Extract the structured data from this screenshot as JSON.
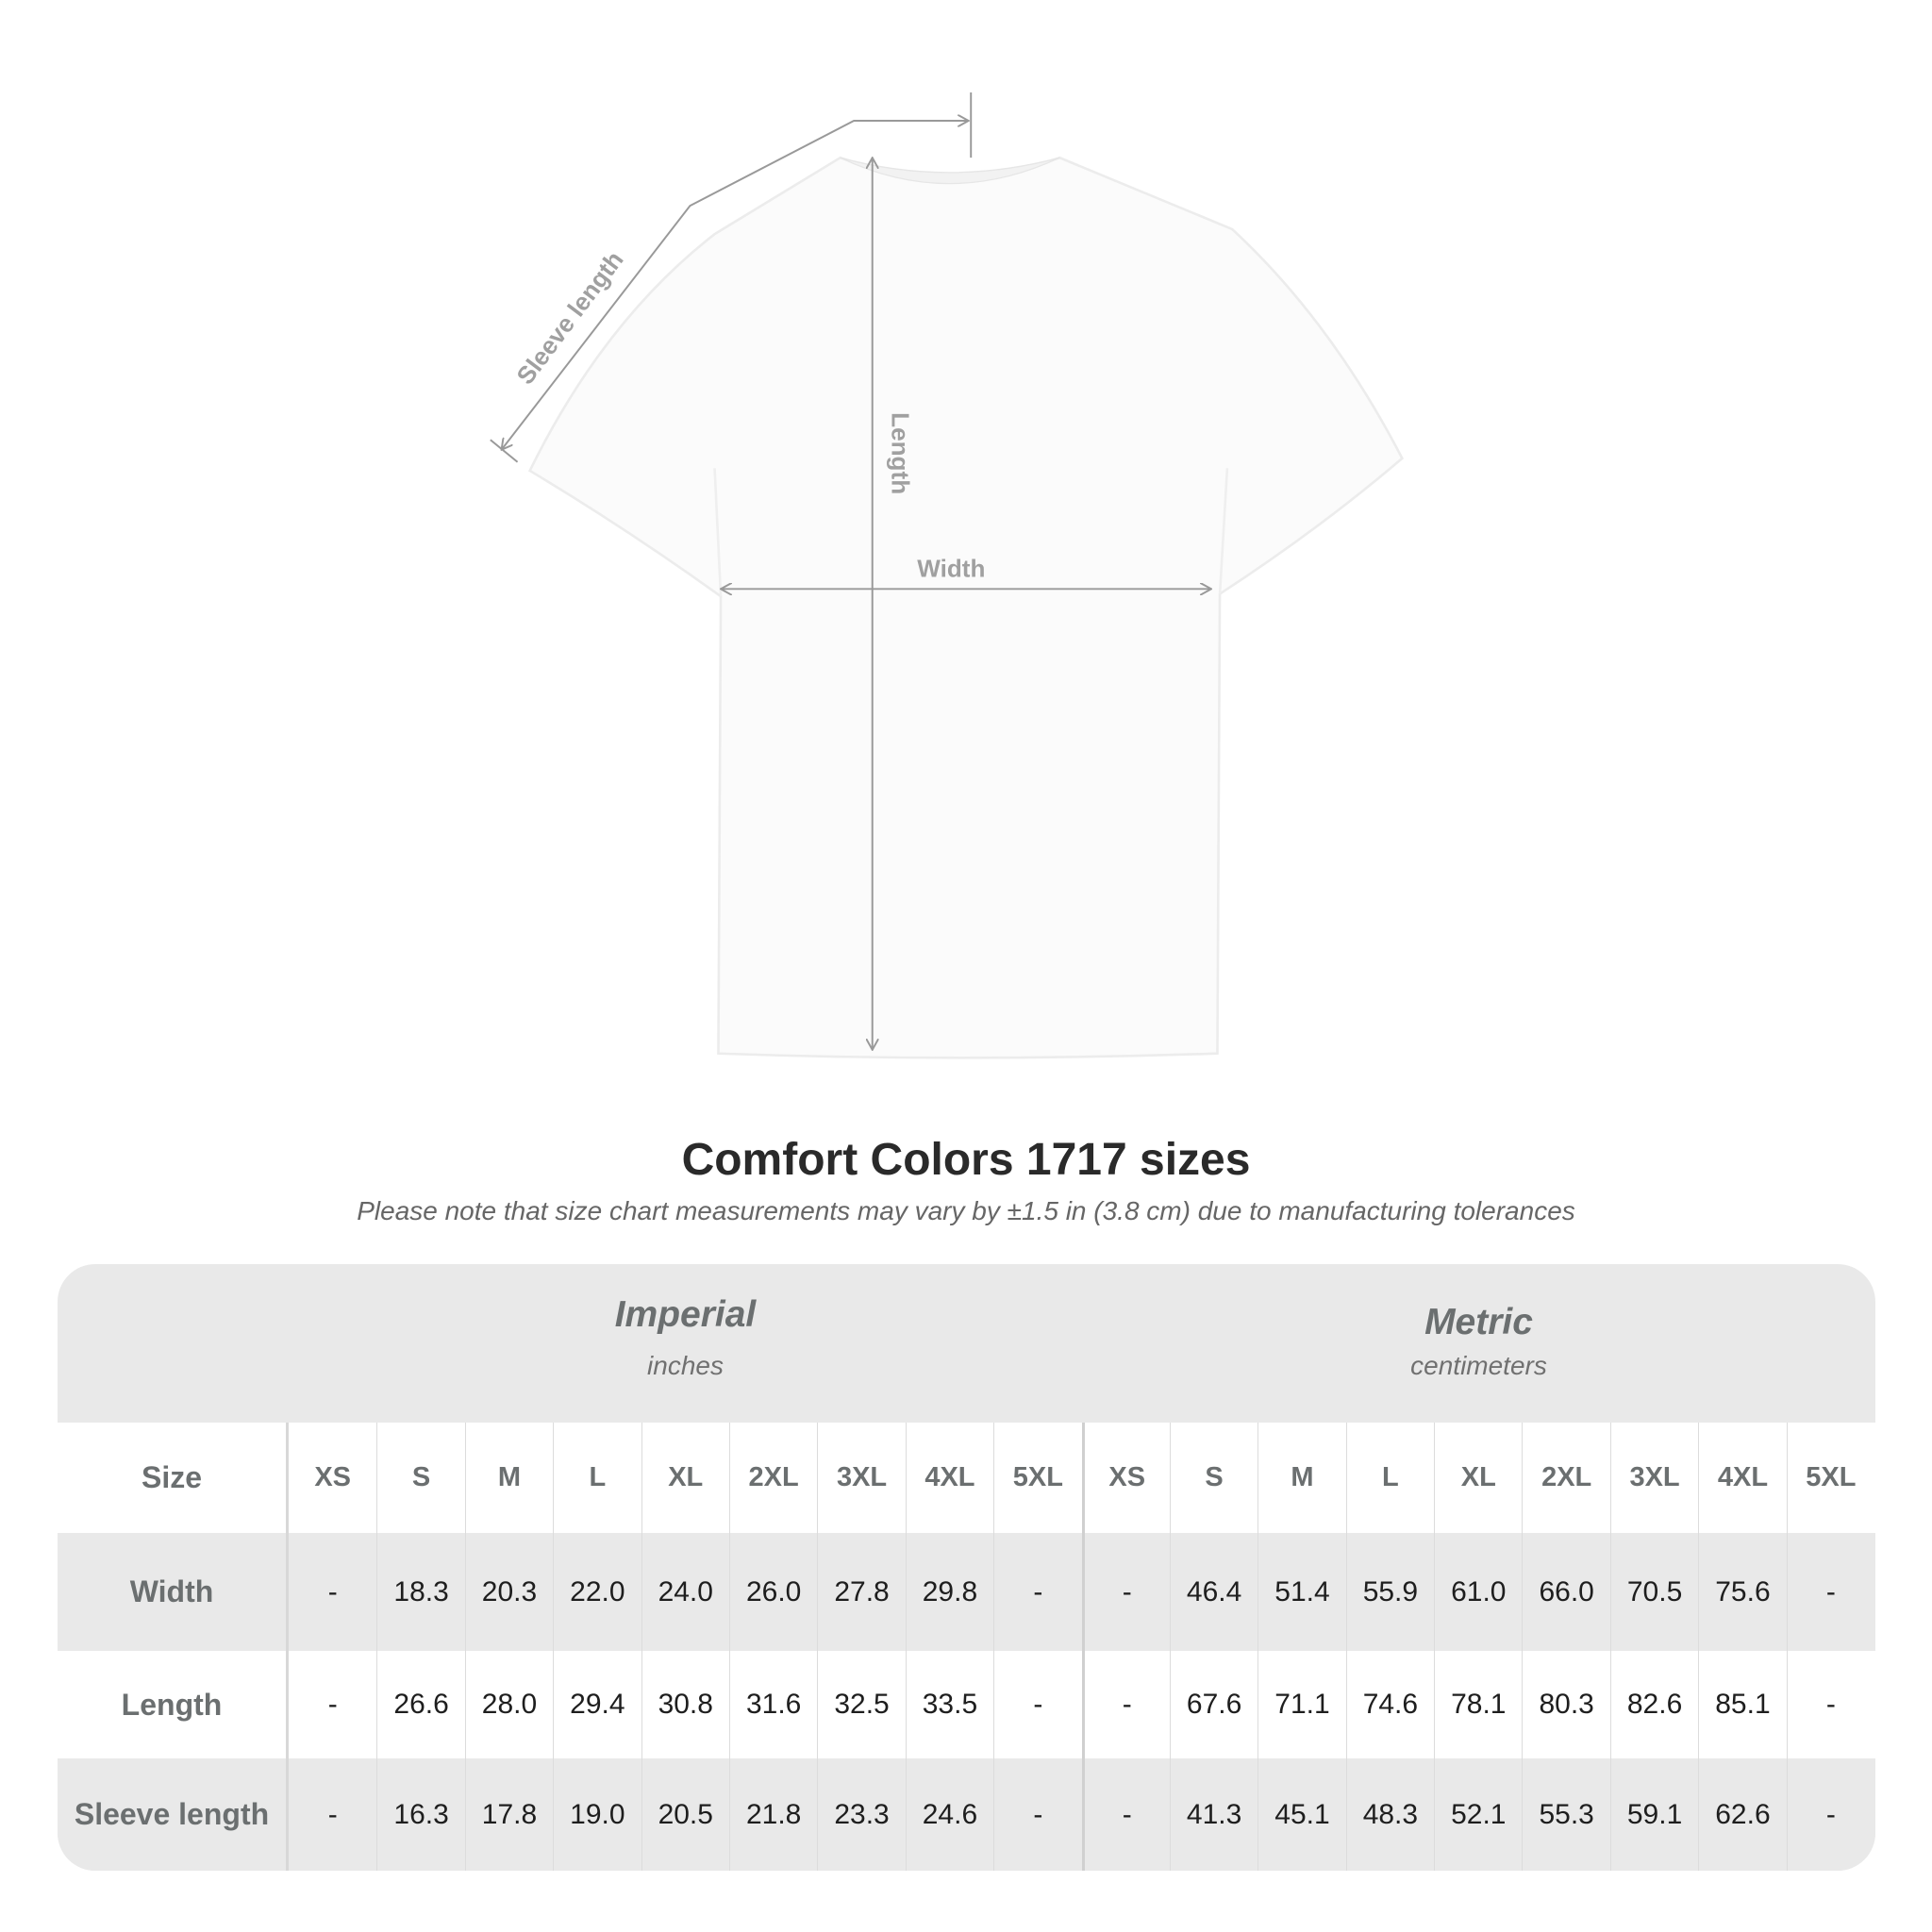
{
  "diagram": {
    "labels": {
      "sleeve": "Sleeve length",
      "length": "Length",
      "width": "Width"
    },
    "line_color": "#999999"
  },
  "title": "Comfort Colors 1717 sizes",
  "note": "Please note that size chart measurements may vary by ±1.5 in (3.8 cm) due to manufacturing tolerances",
  "table": {
    "imperial": {
      "title": "Imperial",
      "unit": "inches"
    },
    "metric": {
      "title": "Metric",
      "unit": "centimeters"
    },
    "size_label": "Size",
    "sizes": [
      "XS",
      "S",
      "M",
      "L",
      "XL",
      "2XL",
      "3XL",
      "4XL",
      "5XL"
    ],
    "rows": [
      {
        "label": "Width",
        "imperial": [
          "-",
          "18.3",
          "20.3",
          "22.0",
          "24.0",
          "26.0",
          "27.8",
          "29.8",
          "-"
        ],
        "metric": [
          "-",
          "46.4",
          "51.4",
          "55.9",
          "61.0",
          "66.0",
          "70.5",
          "75.6",
          "-"
        ]
      },
      {
        "label": "Length",
        "imperial": [
          "-",
          "26.6",
          "28.0",
          "29.4",
          "30.8",
          "31.6",
          "32.5",
          "33.5",
          "-"
        ],
        "metric": [
          "-",
          "67.6",
          "71.1",
          "74.6",
          "78.1",
          "80.3",
          "82.6",
          "85.1",
          "-"
        ]
      },
      {
        "label": "Sleeve length",
        "imperial": [
          "-",
          "16.3",
          "17.8",
          "19.0",
          "20.5",
          "21.8",
          "23.3",
          "24.6",
          "-"
        ],
        "metric": [
          "-",
          "41.3",
          "45.1",
          "48.3",
          "52.1",
          "55.3",
          "59.1",
          "62.6",
          "-"
        ]
      }
    ]
  }
}
